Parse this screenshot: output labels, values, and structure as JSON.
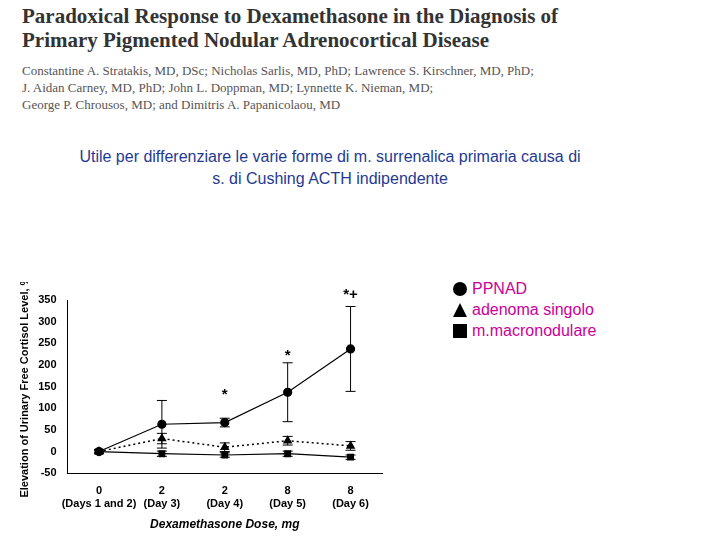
{
  "header": {
    "title_lines": [
      "Paradoxical Response to Dexamethasone in the Diagnosis of",
      "Primary Pigmented Nodular Adrenocortical Disease"
    ],
    "author_lines": [
      "Constantine A. Stratakis, MD, DSc; Nicholas Sarlis, MD, PhD; Lawrence S. Kirschner, MD, PhD;",
      "J. Aidan Carney, MD, PhD; John L. Doppman, MD; Lynnette K. Nieman, MD;",
      "George P. Chrousos, MD; and Dimitris A. Papanicolaou, MD"
    ]
  },
  "subtitle_lines": [
    "Utile per differenziare le varie forme di m. surrenalica primaria causa di",
    "s. di Cushing ACTH indipendente"
  ],
  "chart_data": {
    "type": "line",
    "x_label": "Dexamethasone Dose, mg",
    "y_label": "Elevation of Urinary Free Cortisol Level, %",
    "categories": [
      "0\n(Days 1 and 2)",
      "2\n(Day 3)",
      "2\n(Day 4)",
      "8\n(Day 5)",
      "8\n(Day 6)"
    ],
    "series": [
      {
        "name": "PPNAD",
        "color": "#000000",
        "marker": "circle",
        "line_style": "solid",
        "values": [
          0,
          63,
          67,
          137,
          237
        ],
        "errors": [
          5,
          55,
          10,
          68,
          98
        ]
      },
      {
        "name": "adenoma singolo",
        "color": "#000000",
        "marker": "triangle",
        "line_style": "dotted",
        "values": [
          0,
          30,
          10,
          25,
          13
        ],
        "errors": [
          4,
          12,
          10,
          10,
          10
        ]
      },
      {
        "name": "m.macronodulare",
        "color": "#000000",
        "marker": "square",
        "line_style": "solid",
        "values": [
          0,
          -5,
          -8,
          -5,
          -13
        ],
        "errors": [
          3,
          6,
          5,
          6,
          5
        ]
      }
    ],
    "annotations": [
      {
        "x_index": 2,
        "y": 130,
        "text": "*"
      },
      {
        "x_index": 3,
        "y": 222,
        "text": "*"
      },
      {
        "x_index": 4,
        "y": 362,
        "text": "*+"
      }
    ],
    "ylim": [
      -50,
      350
    ],
    "yticks": [
      -50,
      0,
      50,
      100,
      150,
      200,
      250,
      300,
      350
    ],
    "grid": false
  }
}
